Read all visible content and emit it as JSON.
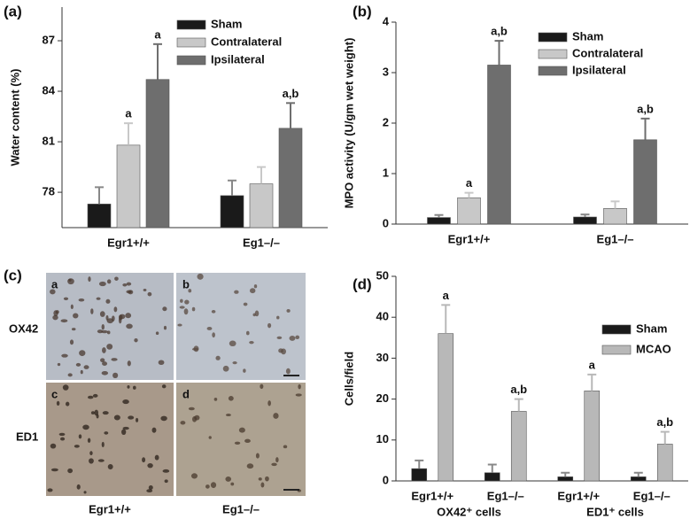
{
  "chart_data": [
    {
      "type": "bar",
      "panel_label": "(a)",
      "y_label": "Water content (%)",
      "categories": [
        "Egr1+/+",
        "Eg1–/–"
      ],
      "series": [
        {
          "name": "Sham",
          "color": "#1a1a1a",
          "values": [
            77.3,
            77.8
          ],
          "errors": [
            1.0,
            0.9
          ],
          "annotations": [
            null,
            null
          ]
        },
        {
          "name": "Contralateral",
          "color": "#c8c8c8",
          "values": [
            80.8,
            78.5
          ],
          "errors": [
            1.3,
            1.0
          ],
          "annotations": [
            "a",
            null
          ]
        },
        {
          "name": "Ipsilateral",
          "color": "#6e6e6e",
          "values": [
            84.7,
            81.8
          ],
          "errors": [
            2.1,
            1.5
          ],
          "annotations": [
            "a",
            "a,b"
          ]
        }
      ],
      "ylim": [
        75.9,
        89
      ],
      "yticks": [
        78,
        81,
        84,
        87
      ]
    },
    {
      "type": "bar",
      "panel_label": "(b)",
      "y_label": "MPO activity (U/gm wet weight)",
      "categories": [
        "Egr1+/+",
        "Eg1–/–"
      ],
      "series": [
        {
          "name": "Sham",
          "color": "#1a1a1a",
          "values": [
            0.13,
            0.14
          ],
          "errors": [
            0.05,
            0.05
          ],
          "annotations": [
            null,
            null
          ]
        },
        {
          "name": "Contralateral",
          "color": "#c8c8c8",
          "values": [
            0.52,
            0.31
          ],
          "errors": [
            0.1,
            0.14
          ],
          "annotations": [
            "a",
            null
          ]
        },
        {
          "name": "Ipsilateral",
          "color": "#6e6e6e",
          "values": [
            3.15,
            1.67
          ],
          "errors": [
            0.48,
            0.42
          ],
          "annotations": [
            "a,b",
            "a,b"
          ]
        }
      ],
      "ylim": [
        0,
        4
      ],
      "yticks": [
        0,
        1,
        2,
        3,
        4
      ]
    },
    {
      "type": "bar",
      "panel_label": "(d)",
      "y_label": "Cells/field",
      "categories": [
        "Egr1+/+",
        "Eg1–/–",
        "Egr1+/+",
        "Eg1–/–"
      ],
      "group_labels": [
        "OX42⁺ cells",
        "ED1⁺ cells"
      ],
      "series": [
        {
          "name": "Sham",
          "color": "#1a1a1a",
          "values": [
            3,
            2,
            1,
            1
          ],
          "errors": [
            2,
            2,
            1,
            1
          ],
          "annotations": [
            null,
            null,
            null,
            null
          ]
        },
        {
          "name": "MCAO",
          "color": "#b8b8b8",
          "values": [
            36,
            17,
            22,
            9
          ],
          "errors": [
            7,
            3,
            4,
            3
          ],
          "annotations": [
            "a",
            "a,b",
            "a",
            "a,b"
          ]
        }
      ],
      "ylim": [
        0,
        50
      ],
      "yticks": [
        0,
        10,
        20,
        30,
        40,
        50
      ]
    }
  ],
  "micrograph_panel": {
    "panel_label": "(c)",
    "image_labels": [
      "a",
      "b",
      "c",
      "d"
    ],
    "row_labels": [
      "OX42",
      "ED1"
    ],
    "column_labels": [
      "Egr1+/+",
      "Eg1–/–"
    ]
  }
}
